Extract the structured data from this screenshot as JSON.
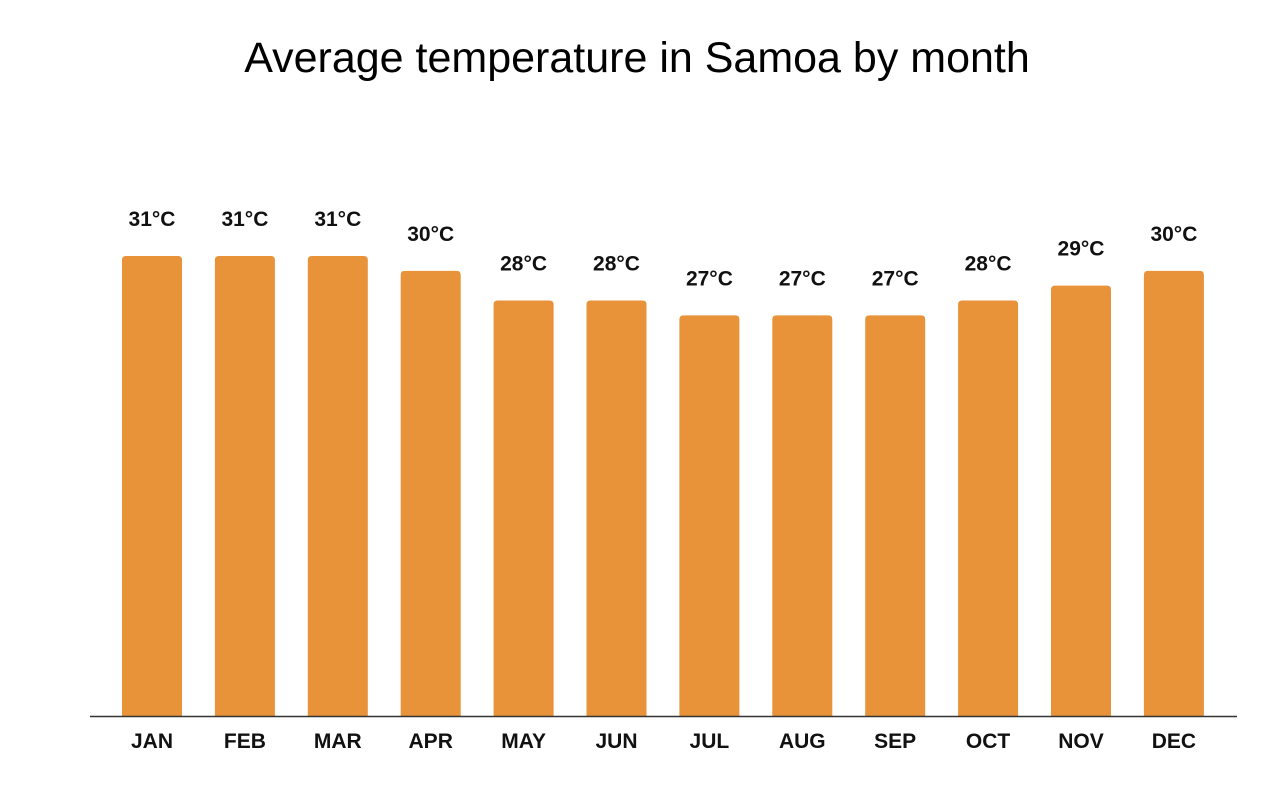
{
  "chart_data": {
    "type": "bar",
    "title": "Average temperature in Samoa by month",
    "xlabel": "",
    "ylabel": "",
    "categories": [
      "JAN",
      "FEB",
      "MAR",
      "APR",
      "MAY",
      "JUN",
      "JUL",
      "AUG",
      "SEP",
      "OCT",
      "NOV",
      "DEC"
    ],
    "values": [
      31,
      31,
      31,
      30,
      28,
      28,
      27,
      27,
      27,
      28,
      29,
      30
    ],
    "data_labels": [
      "31°C",
      "31°C",
      "31°C",
      "30°C",
      "28°C",
      "28°C",
      "27°C",
      "27°C",
      "27°C",
      "28°C",
      "29°C",
      "30°C"
    ],
    "ylim": [
      0,
      31
    ],
    "grid": false,
    "bar_color": "#E8923A"
  }
}
